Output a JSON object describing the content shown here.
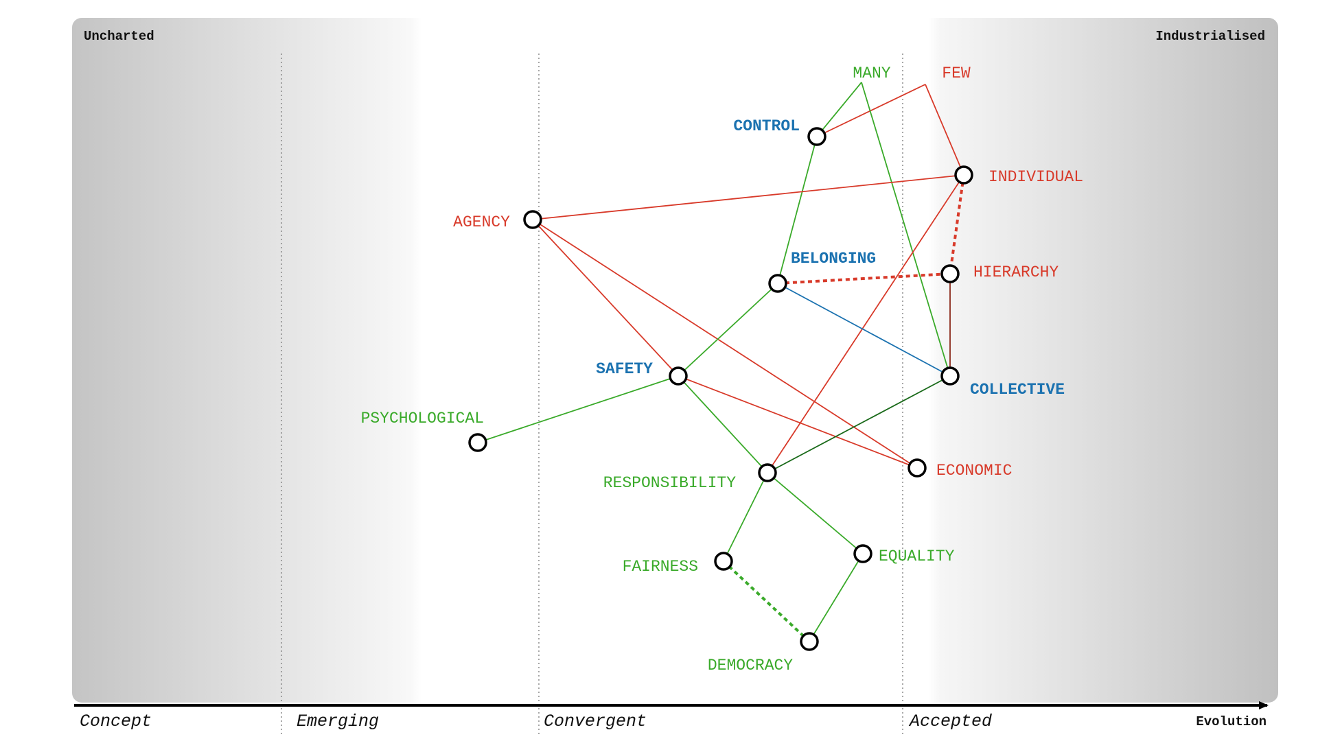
{
  "corners": {
    "top_left": "Uncharted",
    "top_right": "Industrialised"
  },
  "stages": [
    "Concept",
    "Emerging",
    "Convergent",
    "Accepted"
  ],
  "axis": {
    "label": "Evolution"
  },
  "colors": {
    "green": "#3aaa2a",
    "red": "#d83a2a",
    "blue": "#1b72b0",
    "dark_green": "#1a6a1a",
    "dark_red": "#8b2a1a"
  },
  "nodes": [
    {
      "id": "many",
      "label": "MANY",
      "color": "green",
      "bold": false,
      "circle": false
    },
    {
      "id": "few",
      "label": "FEW",
      "color": "red",
      "bold": false,
      "circle": false
    },
    {
      "id": "control",
      "label": "CONTROL",
      "color": "blue",
      "bold": true,
      "circle": true
    },
    {
      "id": "individual",
      "label": "INDIVIDUAL",
      "color": "red",
      "bold": false,
      "circle": true
    },
    {
      "id": "agency",
      "label": "AGENCY",
      "color": "red",
      "bold": false,
      "circle": true
    },
    {
      "id": "belonging",
      "label": "BELONGING",
      "color": "blue",
      "bold": true,
      "circle": true
    },
    {
      "id": "hierarchy",
      "label": "HIERARCHY",
      "color": "red",
      "bold": false,
      "circle": true
    },
    {
      "id": "safety",
      "label": "SAFETY",
      "color": "blue",
      "bold": true,
      "circle": true
    },
    {
      "id": "collective",
      "label": "COLLECTIVE",
      "color": "blue",
      "bold": true,
      "circle": true
    },
    {
      "id": "psychological",
      "label": "PSYCHOLOGICAL",
      "color": "green",
      "bold": false,
      "circle": true
    },
    {
      "id": "economic",
      "label": "ECONOMIC",
      "color": "red",
      "bold": false,
      "circle": true
    },
    {
      "id": "responsibility",
      "label": "RESPONSIBILITY",
      "color": "green",
      "bold": false,
      "circle": true
    },
    {
      "id": "fairness",
      "label": "FAIRNESS",
      "color": "green",
      "bold": false,
      "circle": true
    },
    {
      "id": "equality",
      "label": "EQUALITY",
      "color": "green",
      "bold": false,
      "circle": true
    },
    {
      "id": "democracy",
      "label": "DEMOCRACY",
      "color": "green",
      "bold": false,
      "circle": true
    }
  ],
  "links": [
    {
      "from": "many",
      "to": "control",
      "color": "green",
      "dashed": false
    },
    {
      "from": "few",
      "to": "control",
      "color": "red",
      "dashed": false
    },
    {
      "from": "few",
      "to": "individual",
      "color": "red",
      "dashed": false
    },
    {
      "from": "many",
      "to": "collective",
      "color": "green",
      "dashed": false
    },
    {
      "from": "control",
      "to": "belonging",
      "color": "green",
      "dashed": false
    },
    {
      "from": "agency",
      "to": "individual",
      "color": "red",
      "dashed": false
    },
    {
      "from": "agency",
      "to": "safety",
      "color": "red",
      "dashed": false
    },
    {
      "from": "agency",
      "to": "economic",
      "color": "red",
      "dashed": false
    },
    {
      "from": "individual",
      "to": "hierarchy",
      "color": "red",
      "dashed": true
    },
    {
      "from": "individual",
      "to": "responsibility",
      "color": "red",
      "dashed": false
    },
    {
      "from": "belonging",
      "to": "hierarchy",
      "color": "red",
      "dashed": true
    },
    {
      "from": "belonging",
      "to": "collective",
      "color": "blue",
      "dashed": false
    },
    {
      "from": "belonging",
      "to": "safety",
      "color": "green",
      "dashed": false
    },
    {
      "from": "hierarchy",
      "to": "collective",
      "color": "dark_red",
      "dashed": false
    },
    {
      "from": "safety",
      "to": "psychological",
      "color": "green",
      "dashed": false
    },
    {
      "from": "safety",
      "to": "economic",
      "color": "red",
      "dashed": false
    },
    {
      "from": "safety",
      "to": "responsibility",
      "color": "green",
      "dashed": false
    },
    {
      "from": "collective",
      "to": "responsibility",
      "color": "dark_green",
      "dashed": false
    },
    {
      "from": "responsibility",
      "to": "fairness",
      "color": "green",
      "dashed": false
    },
    {
      "from": "responsibility",
      "to": "equality",
      "color": "green",
      "dashed": false
    },
    {
      "from": "fairness",
      "to": "democracy",
      "color": "green",
      "dashed": true
    },
    {
      "from": "equality",
      "to": "democracy",
      "color": "green",
      "dashed": false
    }
  ]
}
